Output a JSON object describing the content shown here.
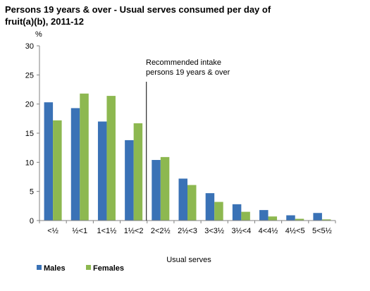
{
  "chart_data": {
    "type": "bar",
    "title_lines": [
      "Persons 19 years & over - Usual serves consumed per day of",
      "fruit(a)(b), 2011-12"
    ],
    "ylabel": "%",
    "xlabel": "Usual serves",
    "ylim": [
      0,
      30
    ],
    "yticks": [
      0,
      5,
      10,
      15,
      20,
      25,
      30
    ],
    "grid": false,
    "legend_position": "bottom-left",
    "categories": [
      "<½",
      "½<1",
      "1<1½",
      "1½<2",
      "2<2½",
      "2½<3",
      "3<3½",
      "3½<4",
      "4<4½",
      "4½<5",
      "5<5½"
    ],
    "series": [
      {
        "name": "Males",
        "color": "#3a72b6",
        "values": [
          20.3,
          19.3,
          17.0,
          13.8,
          10.4,
          7.2,
          4.7,
          2.8,
          1.8,
          0.9,
          1.3
        ]
      },
      {
        "name": "Females",
        "color": "#8db850",
        "values": [
          17.2,
          21.8,
          21.4,
          16.7,
          10.9,
          6.1,
          3.2,
          1.5,
          0.7,
          0.3,
          0.2
        ]
      }
    ],
    "annotation": {
      "lines": [
        "Recommended intake",
        "persons 19 years & over"
      ],
      "marker_between": [
        3,
        4
      ]
    }
  }
}
